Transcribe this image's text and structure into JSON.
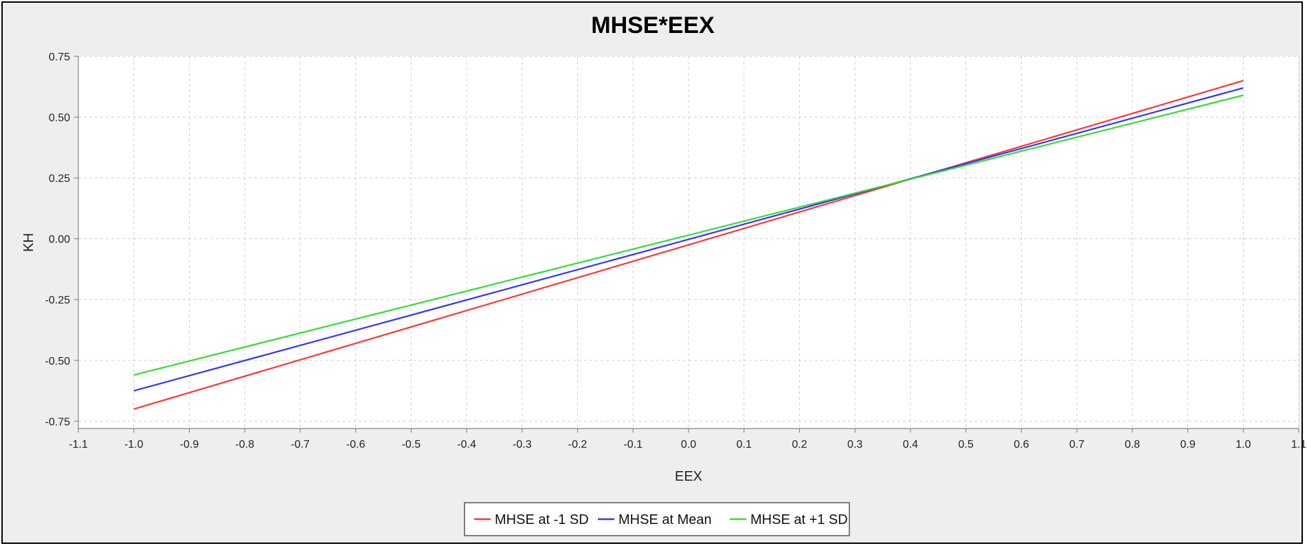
{
  "chart_data": {
    "type": "line",
    "title": "MHSE*EEX",
    "xlabel": "EEX",
    "ylabel": "KH",
    "xlim": [
      -1.1,
      1.1
    ],
    "ylim": [
      -0.78,
      0.75
    ],
    "x_ticks": [
      -1.1,
      -1.0,
      -0.9,
      -0.8,
      -0.7,
      -0.6,
      -0.5,
      -0.4,
      -0.3,
      -0.2,
      -0.1,
      0.0,
      0.1,
      0.2,
      0.3,
      0.4,
      0.5,
      0.6,
      0.7,
      0.8,
      0.9,
      1.0,
      1.1
    ],
    "x_tick_labels": [
      "-1.1",
      "-1.0",
      "-0.9",
      "-0.8",
      "-0.7",
      "-0.6",
      "-0.5",
      "-0.4",
      "-0.3",
      "-0.2",
      "-0.1",
      "0.0",
      "0.1",
      "0.2",
      "0.3",
      "0.4",
      "0.5",
      "0.6",
      "0.7",
      "0.8",
      "0.9",
      "1.0",
      "1.1"
    ],
    "y_ticks": [
      0.75,
      0.5,
      0.25,
      0.0,
      -0.25,
      -0.5,
      -0.75
    ],
    "y_tick_labels": [
      "0.75",
      "0.50",
      "0.25",
      "0.00",
      "-0.25",
      "-0.50",
      "-0.75"
    ],
    "grid": true,
    "legend_position": "bottom",
    "x": [
      -1.0,
      1.0
    ],
    "series": [
      {
        "name": "MHSE at -1 SD",
        "color": "#ff3333",
        "values": [
          -0.7,
          0.65
        ]
      },
      {
        "name": "MHSE at Mean",
        "color": "#3333ff",
        "values": [
          -0.625,
          0.62
        ]
      },
      {
        "name": "MHSE at +1 SD",
        "color": "#33dd33",
        "values": [
          -0.56,
          0.59
        ]
      }
    ]
  }
}
